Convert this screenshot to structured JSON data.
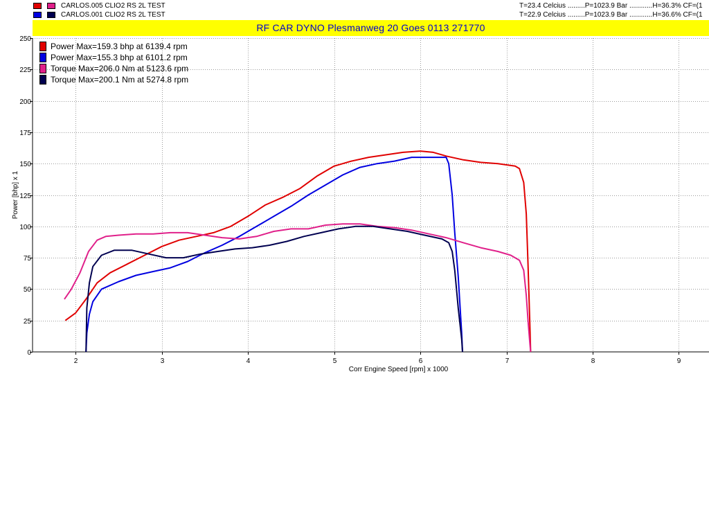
{
  "runs": [
    {
      "name": "CARLOS.005 CLIO2 RS   2L TEST",
      "power_color": "#e00000",
      "torque_color": "#e0208a",
      "conditions": "T=23.4 Celcius .........P=1023.9 Bar ............H=36.3% CF=(1"
    },
    {
      "name": "CARLOS.001 CLIO2 RS   2L TEST",
      "power_color": "#0000e0",
      "torque_color": "#000050",
      "conditions": "T=22.9 Celcius .........P=1023.9 Bar ............H=36.6% CF=(1"
    }
  ],
  "banner": "RF CAR DYNO  Plesmanweg 20 Goes  0113 271770",
  "chart_data": {
    "type": "line",
    "xlabel": "Corr Engine Speed [rpm] x 1000",
    "ylabel": "Power [bhp] x 1",
    "xlim": [
      1.5,
      9.35
    ],
    "ylim": [
      0,
      250
    ],
    "x_ticks": [
      2,
      3,
      4,
      5,
      6,
      7,
      8,
      9
    ],
    "y_ticks": [
      0,
      25,
      50,
      75,
      100,
      125,
      150,
      175,
      200,
      225,
      250
    ],
    "grid": true,
    "legend_position": "top-left",
    "legend": [
      {
        "label": "Power  Max=159.3 bhp at 6139.4 rpm",
        "color": "#e00000"
      },
      {
        "label": "Power  Max=155.3 bhp at 6101.2 rpm",
        "color": "#0000e0"
      },
      {
        "label": "Torque  Max=206.0 Nm at 5123.6 rpm",
        "color": "#e0208a"
      },
      {
        "label": "Torque  Max=200.1 Nm at 5274.8 rpm",
        "color": "#000050"
      }
    ],
    "series": [
      {
        "color": "#e00000",
        "x": [
          1.88,
          2.0,
          2.12,
          2.25,
          2.4,
          2.6,
          2.8,
          3.0,
          3.2,
          3.4,
          3.6,
          3.8,
          4.0,
          4.2,
          4.4,
          4.6,
          4.8,
          5.0,
          5.2,
          5.4,
          5.6,
          5.8,
          6.0,
          6.15,
          6.3,
          6.5,
          6.7,
          6.9,
          7.1,
          7.15,
          7.2,
          7.23,
          7.25,
          7.27,
          7.28
        ],
        "y": [
          25,
          31,
          42,
          55,
          63,
          70,
          77,
          84,
          89,
          92,
          95,
          100,
          108,
          117,
          123,
          130,
          140,
          148,
          152,
          155,
          157,
          159,
          160,
          159,
          156,
          153,
          151,
          150,
          148,
          146,
          135,
          110,
          70,
          25,
          0
        ]
      },
      {
        "color": "#0000e0",
        "x": [
          2.12,
          2.13,
          2.16,
          2.2,
          2.3,
          2.5,
          2.7,
          2.9,
          3.1,
          3.3,
          3.5,
          3.7,
          3.9,
          4.1,
          4.3,
          4.5,
          4.7,
          4.9,
          5.1,
          5.3,
          5.5,
          5.7,
          5.9,
          6.0,
          6.1,
          6.2,
          6.3,
          6.33,
          6.37,
          6.4,
          6.44,
          6.48,
          6.49
        ],
        "y": [
          0,
          15,
          30,
          40,
          50,
          56,
          61,
          64,
          67,
          72,
          79,
          85,
          92,
          100,
          108,
          116,
          125,
          133,
          141,
          147,
          150,
          152,
          155,
          155,
          155,
          155,
          155,
          150,
          125,
          95,
          60,
          15,
          0
        ]
      },
      {
        "color": "#e0208a",
        "x": [
          1.87,
          1.95,
          2.05,
          2.15,
          2.25,
          2.35,
          2.5,
          2.7,
          2.9,
          3.1,
          3.3,
          3.5,
          3.7,
          3.9,
          4.1,
          4.3,
          4.5,
          4.7,
          4.9,
          5.1,
          5.3,
          5.5,
          5.7,
          5.9,
          6.1,
          6.3,
          6.5,
          6.7,
          6.9,
          7.05,
          7.15,
          7.2,
          7.23,
          7.25,
          7.27,
          7.28
        ],
        "y": [
          42,
          50,
          63,
          80,
          89,
          92,
          93,
          94,
          94,
          95,
          95,
          93,
          91,
          90,
          92,
          96,
          98,
          98,
          101,
          102,
          102,
          100,
          99,
          97,
          94,
          91,
          87,
          83,
          80,
          77,
          73,
          65,
          45,
          25,
          8,
          0
        ]
      },
      {
        "color": "#000050",
        "x": [
          2.12,
          2.13,
          2.16,
          2.2,
          2.3,
          2.45,
          2.65,
          2.85,
          3.05,
          3.25,
          3.45,
          3.65,
          3.85,
          4.05,
          4.25,
          4.45,
          4.65,
          4.85,
          5.05,
          5.25,
          5.45,
          5.65,
          5.85,
          6.05,
          6.25,
          6.33,
          6.37,
          6.4,
          6.44,
          6.48,
          6.49
        ],
        "y": [
          0,
          35,
          55,
          68,
          77,
          81,
          81,
          78,
          75,
          75,
          78,
          80,
          82,
          83,
          85,
          88,
          92,
          95,
          98,
          100,
          100,
          98,
          96,
          93,
          90,
          87,
          80,
          65,
          35,
          10,
          0
        ]
      }
    ]
  }
}
